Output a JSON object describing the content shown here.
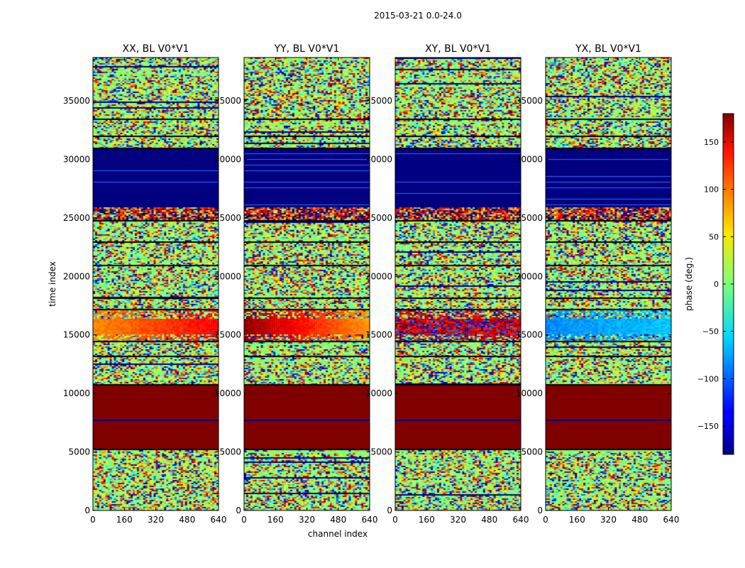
{
  "figure_title": "2015-03-21 0.0-24.0",
  "chart_data": {
    "type": "heatmap",
    "title": "2015-03-21 0.0-24.0",
    "xlabel": "channel index",
    "ylabel": "time index",
    "xlim": [
      0,
      640
    ],
    "ylim": [
      0,
      38700
    ],
    "x_ticks": [
      0,
      160,
      320,
      480,
      640
    ],
    "y_ticks": [
      0,
      5000,
      10000,
      15000,
      20000,
      25000,
      30000,
      35000
    ],
    "panels": [
      {
        "title": "XX, BL V0*V1",
        "hot_band_style": "orange"
      },
      {
        "title": "YY, BL V0*V1",
        "hot_band_style": "red-orange"
      },
      {
        "title": "XY, BL V0*V1",
        "hot_band_style": "noisy-red"
      },
      {
        "title": "YX, BL V0*V1",
        "hot_band_style": "cyan"
      }
    ],
    "row_structure": [
      {
        "from": 0,
        "to": 5300,
        "pattern": "noise"
      },
      {
        "from": 5300,
        "to": 10800,
        "pattern": "solid",
        "phase_deg": 180
      },
      {
        "from": 10800,
        "to": 14500,
        "pattern": "noise"
      },
      {
        "from": 14500,
        "to": 17200,
        "pattern": "phase-band"
      },
      {
        "from": 17200,
        "to": 24800,
        "pattern": "noise"
      },
      {
        "from": 24800,
        "to": 25900,
        "pattern": "mixed"
      },
      {
        "from": 25900,
        "to": 31000,
        "pattern": "solid",
        "phase_deg": -180
      },
      {
        "from": 31000,
        "to": 38700,
        "pattern": "noise"
      }
    ],
    "colorbar": {
      "label": "phase (deg.)",
      "range": [
        -180,
        180
      ],
      "ticks": [
        -150,
        -100,
        -50,
        0,
        50,
        100,
        150
      ],
      "colormap": "jet"
    }
  }
}
